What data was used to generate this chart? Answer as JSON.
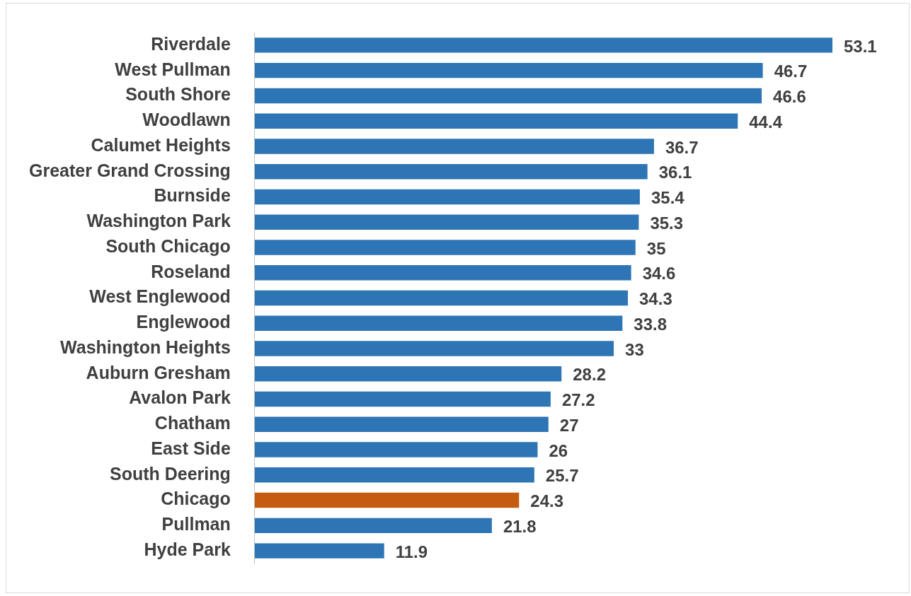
{
  "chart_data": {
    "type": "bar",
    "orientation": "horizontal",
    "data_labels": true,
    "legend": false,
    "categories": [
      "Riverdale",
      "West Pullman",
      "South Shore",
      "Woodlawn",
      "Calumet Heights",
      "Greater Grand Crossing",
      "Burnside",
      "Washington Park",
      "South Chicago",
      "Roseland",
      "West Englewood",
      "Englewood",
      "Washington Heights",
      "Auburn Gresham",
      "Avalon Park",
      "Chatham",
      "East Side",
      "South Deering",
      "Chicago",
      "Pullman",
      "Hyde Park"
    ],
    "values": [
      53.1,
      46.7,
      46.6,
      44.4,
      36.7,
      36.1,
      35.4,
      35.3,
      35,
      34.6,
      34.3,
      33.8,
      33,
      28.2,
      27.2,
      27,
      26,
      25.7,
      24.3,
      21.8,
      11.9
    ],
    "colors": [
      "#2e75b6",
      "#2e75b6",
      "#2e75b6",
      "#2e75b6",
      "#2e75b6",
      "#2e75b6",
      "#2e75b6",
      "#2e75b6",
      "#2e75b6",
      "#2e75b6",
      "#2e75b6",
      "#2e75b6",
      "#2e75b6",
      "#2e75b6",
      "#2e75b6",
      "#2e75b6",
      "#2e75b6",
      "#2e75b6",
      "#c55a11",
      "#2e75b6",
      "#2e75b6"
    ]
  }
}
